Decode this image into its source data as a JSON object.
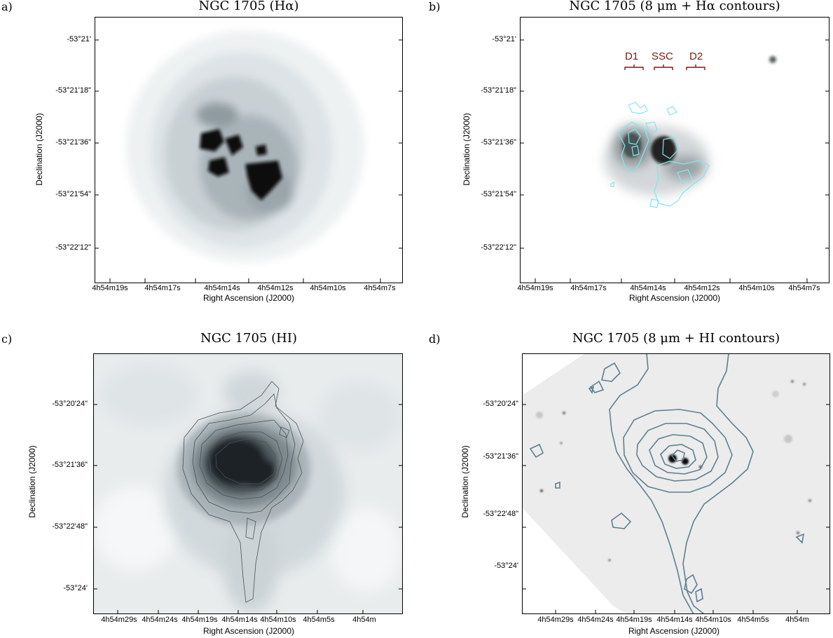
{
  "panels": {
    "a": {
      "letter": "a)",
      "title": "NGC 1705 (Hα)",
      "ylabel": "Declination (J2000)",
      "xlabel": "Right Ascension (J2000)",
      "yticks": [
        "-53°21'",
        "-53°21'18\"",
        "-53°21'36\"",
        "-53°21'54\"",
        "-53°22'12\""
      ],
      "xticks": [
        "4h54m19s",
        "4h54m17s",
        "4h54m14s",
        "4h54m12s",
        "4h54m10s",
        "4h54m7s"
      ]
    },
    "b": {
      "letter": "b)",
      "title": "NGC 1705 (8 μm + Hα contours)",
      "ylabel": "Declination (J2000)",
      "xlabel": "Right Ascension (J2000)",
      "yticks": [
        "-53°21'",
        "-53°21'18\"",
        "-53°21'36\"",
        "-53°21'54\"",
        "-53°22'12\""
      ],
      "xticks": [
        "4h54m19s",
        "4h54m17s",
        "4h54m14s",
        "4h54m12s",
        "4h54m10s",
        "4h54m7s"
      ],
      "features": [
        "D1",
        "SSC",
        "D2"
      ],
      "contour_color": "#7fe9ea",
      "feature_color": "#7a1a12"
    },
    "c": {
      "letter": "c)",
      "title": "NGC 1705 (HI)",
      "ylabel": "Declination (J2000)",
      "xlabel": "Right Ascension (J2000)",
      "yticks": [
        "-53°20'24\"",
        "-53°21'36\"",
        "-53°22'48\"",
        "-53°24'"
      ],
      "xticks": [
        "4h54m29s",
        "4h54m24s",
        "4h54m19s",
        "4h54m14s",
        "4h54m10s",
        "4h54m5s",
        "4h54m"
      ]
    },
    "d": {
      "letter": "d)",
      "title": "NGC 1705 (8 μm + HI contours)",
      "ylabel": "Declination (J2000)",
      "xlabel": "Right Ascension (J2000)",
      "yticks": [
        "-53°20'24\"",
        "-53°21'36\"",
        "-53°22'48\"",
        "-53°24'"
      ],
      "xticks": [
        "4h54m29s",
        "4h54m24s",
        "4h54m19s",
        "4h54m14s",
        "4h54m10s",
        "4h54m5s",
        "4h54m"
      ],
      "contour_color": "#5f7f90"
    }
  }
}
